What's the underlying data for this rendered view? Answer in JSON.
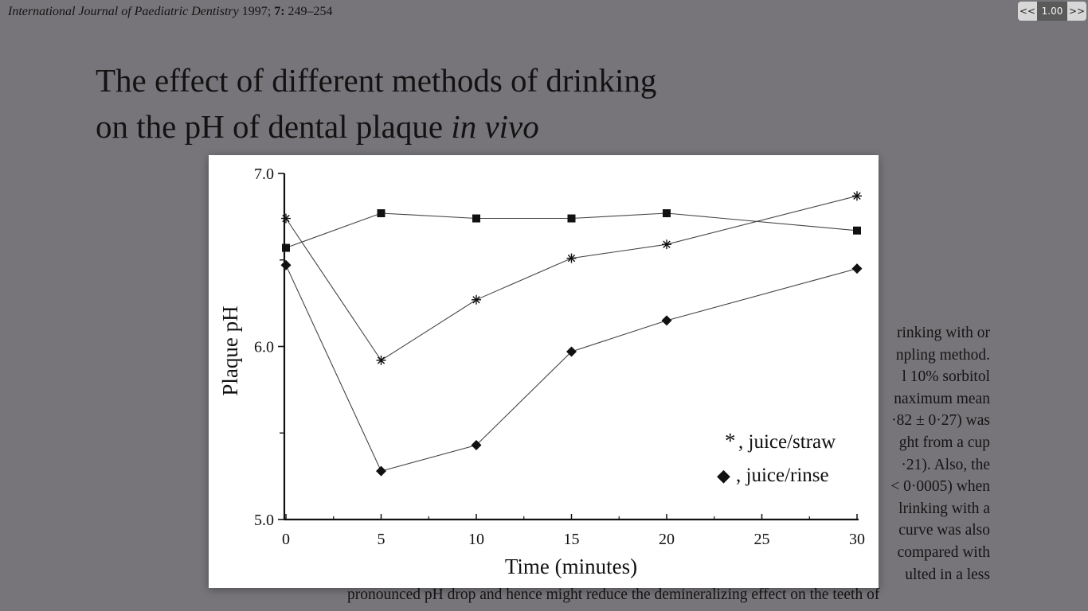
{
  "header": {
    "journal": "International Journal of Paediatric Dentistry",
    "year": "1997;",
    "volume": "7:",
    "pages": "249–254"
  },
  "title": {
    "line1": "The effect of different methods of drinking",
    "line2_plain": "on the pH of dental plaque ",
    "line2_italic": "in vivo"
  },
  "zoom": {
    "prev": "<<",
    "value": "1.00",
    "next": ">>"
  },
  "body_text": [
    "rinking with or",
    "npling method.",
    "l 10% sorbitol",
    "naximum mean",
    "·82 ± 0·27) was",
    "ght from a cup",
    "·21). Also, the",
    "< 0·0005) when",
    "lrinking with a",
    "curve was also",
    "compared with",
    "ulted in a less"
  ],
  "bottom_line": "pronounced pH drop and hence might reduce the demineralizing effect on the teeth of",
  "chart_data": {
    "type": "line",
    "xlabel": "Time (minutes)",
    "ylabel": "Plaque pH",
    "xlim": [
      0,
      30
    ],
    "ylim": [
      5.0,
      7.0
    ],
    "x_ticks": [
      0,
      5,
      10,
      15,
      20,
      25,
      30
    ],
    "y_tick_labels": [
      {
        "value": 5.0,
        "label": "5.0"
      },
      {
        "value": 6.0,
        "label": "6.0"
      },
      {
        "value": 7.0,
        "label": "7.0"
      }
    ],
    "y_minor_ticks": [
      5.5,
      6.5
    ],
    "grid": false,
    "legend_position": "bottom-right",
    "series": [
      {
        "marker": "square",
        "x": [
          0,
          5,
          10,
          15,
          20,
          30
        ],
        "values": [
          6.57,
          6.77,
          6.74,
          6.74,
          6.77,
          6.67
        ]
      },
      {
        "name": "juice/straw",
        "legend_symbol": "*",
        "marker": "asterisk",
        "x": [
          0,
          5,
          10,
          15,
          20,
          30
        ],
        "values": [
          6.74,
          5.92,
          6.27,
          6.51,
          6.59,
          6.87
        ]
      },
      {
        "name": "juice/rinse",
        "legend_symbol": "◆",
        "marker": "diamond",
        "x": [
          0,
          5,
          10,
          15,
          20,
          30
        ],
        "values": [
          6.47,
          5.28,
          5.43,
          5.97,
          6.15,
          6.45
        ]
      }
    ]
  }
}
